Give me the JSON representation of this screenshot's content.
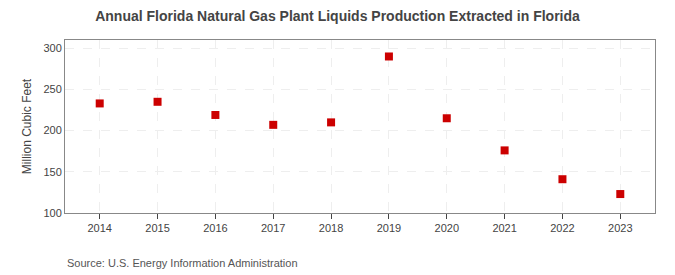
{
  "chart_data": {
    "type": "scatter",
    "title": "Annual Florida Natural Gas Plant Liquids Production Extracted in Florida",
    "ylabel": "Million Cubic Feet",
    "annotations": [
      "Source: U.S. Energy Information Administration"
    ],
    "x": [
      2014,
      2015,
      2016,
      2017,
      2018,
      2019,
      2020,
      2021,
      2022,
      2023
    ],
    "values": [
      233,
      235,
      219,
      207,
      210,
      290,
      215,
      176,
      141,
      123
    ],
    "color": "#cc0000",
    "marker": "square",
    "xlim": [
      2013.4,
      2023.6
    ],
    "xticks": [
      2014,
      2015,
      2016,
      2017,
      2018,
      2019,
      2020,
      2021,
      2022,
      2023
    ],
    "ylim": [
      100,
      310
    ],
    "yticks": [
      100,
      150,
      200,
      250,
      300
    ],
    "grid": true
  }
}
